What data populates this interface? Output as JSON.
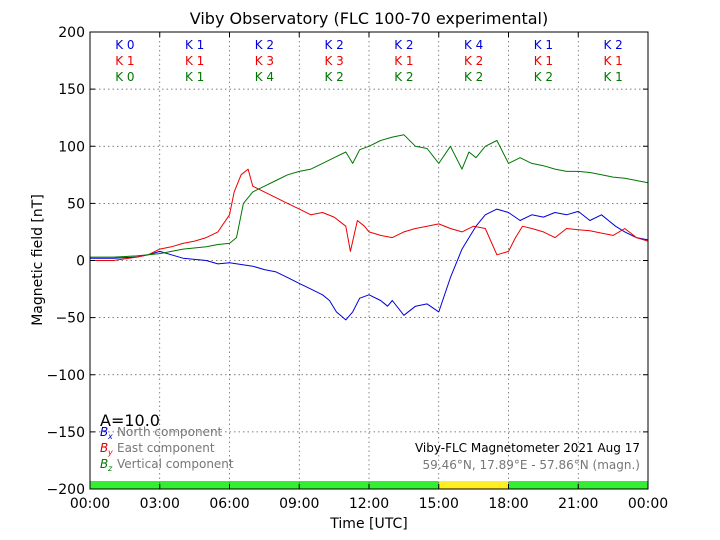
{
  "chart_data": {
    "type": "line",
    "title": "Viby Observatory (FLC 100-70 experimental)",
    "xlabel": "Time [UTC]",
    "ylabel": "Magnetic field [nT]",
    "xlim": [
      0,
      24
    ],
    "ylim": [
      -200,
      200
    ],
    "x_ticks": [
      "00:00",
      "03:00",
      "06:00",
      "09:00",
      "12:00",
      "15:00",
      "18:00",
      "21:00",
      "00:00"
    ],
    "y_ticks": [
      "−200",
      "−150",
      "−100",
      "−50",
      "0",
      "50",
      "100",
      "150",
      "200"
    ],
    "y_tick_values": [
      -200,
      -150,
      -100,
      -50,
      0,
      50,
      100,
      150,
      200
    ],
    "grid": true,
    "annotation_a": "A=10.0",
    "footer_line1": "Viby-FLC Magnetometer 2021 Aug 17",
    "footer_line2": "59.46°N, 17.89°E - 57.86°N (magn.)",
    "k_indices": {
      "blue": [
        "K 0",
        "K 1",
        "K 2",
        "K 2",
        "K 2",
        "K 4",
        "K 1",
        "K 2"
      ],
      "red": [
        "K 1",
        "K 1",
        "K 3",
        "K 3",
        "K 1",
        "K 2",
        "K 1",
        "K 1"
      ],
      "green": [
        "K 0",
        "K 1",
        "K 4",
        "K 2",
        "K 2",
        "K 2",
        "K 2",
        "K 1"
      ]
    },
    "status_bar": [
      {
        "from": 0,
        "to": 15,
        "color": "#33ee33"
      },
      {
        "from": 15,
        "to": 18,
        "color": "#ffee22"
      },
      {
        "from": 18,
        "to": 24,
        "color": "#33ee33"
      }
    ],
    "legend": [
      {
        "symbol": "B",
        "sub": "x",
        "label": "North component",
        "color": "#0000cc"
      },
      {
        "symbol": "B",
        "sub": "y",
        "label": "East component",
        "color": "#dd0000"
      },
      {
        "symbol": "B",
        "sub": "z",
        "label": "Vertical component",
        "color": "#007700"
      }
    ],
    "series": [
      {
        "color": "#0000dd",
        "x": [
          0,
          1,
          2,
          2.5,
          3,
          3.5,
          4,
          5,
          5.5,
          6,
          7,
          7.5,
          8,
          8.5,
          9,
          9.5,
          10,
          10.3,
          10.6,
          11,
          11.3,
          11.6,
          12,
          12.5,
          12.8,
          13,
          13.5,
          14,
          14.5,
          15,
          15.5,
          16,
          16.3,
          16.6,
          17,
          17.5,
          18,
          18.5,
          19,
          19.5,
          20,
          20.5,
          21,
          21.5,
          22,
          22.3,
          22.6,
          23,
          23.5,
          24
        ],
        "y": [
          2,
          2,
          3,
          5,
          8,
          5,
          2,
          0,
          -3,
          -2,
          -5,
          -8,
          -10,
          -15,
          -20,
          -25,
          -30,
          -35,
          -45,
          -52,
          -45,
          -33,
          -30,
          -35,
          -40,
          -35,
          -48,
          -40,
          -38,
          -45,
          -15,
          10,
          20,
          30,
          40,
          45,
          42,
          35,
          40,
          38,
          42,
          40,
          43,
          35,
          40,
          35,
          30,
          25,
          20,
          18
        ]
      },
      {
        "color": "#ee0000",
        "x": [
          0,
          1,
          2,
          2.5,
          3,
          3.5,
          4,
          4.5,
          5,
          5.5,
          6,
          6.2,
          6.5,
          6.8,
          7,
          7.5,
          8,
          8.5,
          9,
          9.5,
          10,
          10.5,
          11,
          11.2,
          11.5,
          11.8,
          12,
          12.5,
          13,
          13.5,
          14,
          14.5,
          15,
          15.5,
          16,
          16.5,
          17,
          17.5,
          18,
          18.3,
          18.6,
          19,
          19.5,
          20,
          20.5,
          21,
          21.5,
          22,
          22.5,
          23,
          23.5,
          24
        ],
        "y": [
          0,
          0,
          3,
          5,
          10,
          12,
          15,
          17,
          20,
          25,
          40,
          60,
          75,
          80,
          65,
          60,
          55,
          50,
          45,
          40,
          42,
          38,
          30,
          8,
          35,
          30,
          25,
          22,
          20,
          25,
          28,
          30,
          32,
          28,
          25,
          30,
          28,
          5,
          8,
          20,
          30,
          28,
          25,
          20,
          28,
          27,
          26,
          24,
          22,
          28,
          20,
          17
        ]
      },
      {
        "color": "#007700",
        "x": [
          0,
          1,
          2,
          2.5,
          3,
          3.5,
          4,
          5,
          5.5,
          6,
          6.3,
          6.6,
          7,
          7.5,
          8,
          8.5,
          9,
          9.5,
          10,
          10.5,
          11,
          11.3,
          11.6,
          12,
          12.5,
          13,
          13.5,
          14,
          14.5,
          15,
          15.5,
          16,
          16.3,
          16.6,
          17,
          17.5,
          18,
          18.5,
          19,
          19.5,
          20,
          20.5,
          21,
          21.5,
          22,
          22.5,
          23,
          23.5,
          24
        ],
        "y": [
          3,
          3,
          4,
          5,
          6,
          8,
          10,
          12,
          14,
          15,
          20,
          50,
          60,
          65,
          70,
          75,
          78,
          80,
          85,
          90,
          95,
          85,
          97,
          100,
          105,
          108,
          110,
          100,
          98,
          85,
          100,
          80,
          95,
          90,
          100,
          105,
          85,
          90,
          85,
          83,
          80,
          78,
          78,
          77,
          75,
          73,
          72,
          70,
          68
        ]
      }
    ]
  }
}
